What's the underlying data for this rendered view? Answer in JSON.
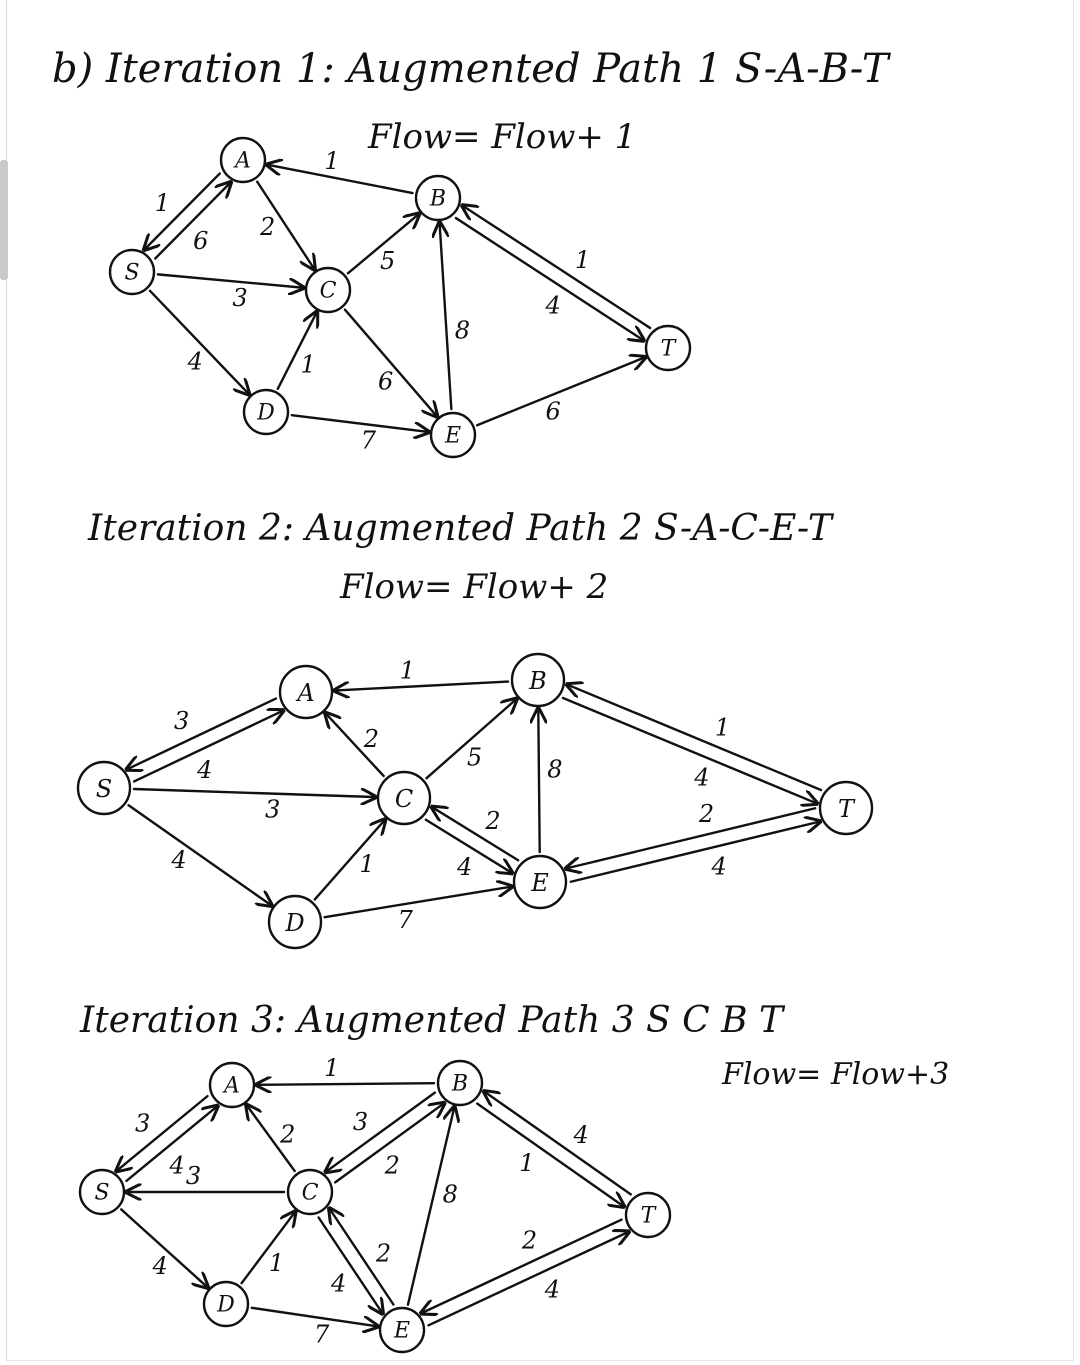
{
  "sections": [
    {
      "title": "b) Iteration 1: Augmented Path 1 S-A-B-T",
      "flow": "Flow= Flow+ 1",
      "nodes": [
        "A",
        "B",
        "S",
        "C",
        "T",
        "D",
        "E"
      ],
      "capacities": [
        {
          "from": "A",
          "to": "S",
          "label": "1"
        },
        {
          "from": "S",
          "to": "A",
          "label": "6"
        },
        {
          "from": "B",
          "to": "A",
          "label": "1"
        },
        {
          "from": "A",
          "to": "C",
          "label": "2"
        },
        {
          "from": "S",
          "to": "C",
          "label": "3"
        },
        {
          "from": "C",
          "to": "B",
          "label": "5"
        },
        {
          "from": "B",
          "to": "T",
          "label": "4"
        },
        {
          "from": "T",
          "to": "B",
          "label": "1"
        },
        {
          "from": "C",
          "to": "E",
          "label": "6"
        },
        {
          "from": "E",
          "to": "B",
          "label": "8"
        },
        {
          "from": "S",
          "to": "D",
          "label": "4"
        },
        {
          "from": "D",
          "to": "C",
          "label": "1"
        },
        {
          "from": "D",
          "to": "E",
          "label": "7"
        },
        {
          "from": "E",
          "to": "T",
          "label": "6"
        }
      ]
    },
    {
      "title": "Iteration 2: Augmented Path 2 S-A-C-E-T",
      "flow": "Flow= Flow+ 2",
      "nodes": [
        "A",
        "B",
        "S",
        "C",
        "T",
        "D",
        "E"
      ],
      "capacities": [
        {
          "from": "A",
          "to": "S",
          "label": "3"
        },
        {
          "from": "S",
          "to": "A",
          "label": "4"
        },
        {
          "from": "B",
          "to": "A",
          "label": "1"
        },
        {
          "from": "C",
          "to": "A",
          "label": "2"
        },
        {
          "from": "S",
          "to": "C",
          "label": "3"
        },
        {
          "from": "C",
          "to": "B",
          "label": "5"
        },
        {
          "from": "B",
          "to": "T",
          "label": "4"
        },
        {
          "from": "T",
          "to": "B",
          "label": "1"
        },
        {
          "from": "C",
          "to": "E",
          "label": "4"
        },
        {
          "from": "E",
          "to": "C",
          "label": "2"
        },
        {
          "from": "E",
          "to": "B",
          "label": "8"
        },
        {
          "from": "T",
          "to": "E",
          "label": "2"
        },
        {
          "from": "E",
          "to": "T",
          "label": "4"
        },
        {
          "from": "S",
          "to": "D",
          "label": "4"
        },
        {
          "from": "D",
          "to": "C",
          "label": "1"
        },
        {
          "from": "D",
          "to": "E",
          "label": "7"
        }
      ]
    },
    {
      "title": "Iteration 3: Augmented Path 3 S C B T",
      "flow": "Flow= Flow+3",
      "nodes": [
        "A",
        "B",
        "S",
        "C",
        "T",
        "D",
        "E"
      ],
      "capacities": [
        {
          "from": "A",
          "to": "S",
          "label": "3"
        },
        {
          "from": "S",
          "to": "A",
          "label": "4"
        },
        {
          "from": "B",
          "to": "A",
          "label": "1"
        },
        {
          "from": "C",
          "to": "A",
          "label": "2"
        },
        {
          "from": "C",
          "to": "S",
          "label": "3"
        },
        {
          "from": "C",
          "to": "B",
          "label": "2"
        },
        {
          "from": "B",
          "to": "C",
          "label": "3"
        },
        {
          "from": "B",
          "to": "T",
          "label": "1"
        },
        {
          "from": "E",
          "to": "B",
          "label": "8"
        },
        {
          "from": "T",
          "to": "B",
          "label": "4"
        },
        {
          "from": "S",
          "to": "D",
          "label": "4"
        },
        {
          "from": "D",
          "to": "C",
          "label": "1"
        },
        {
          "from": "C",
          "to": "E",
          "label": "4"
        },
        {
          "from": "E",
          "to": "C",
          "label": "2"
        },
        {
          "from": "D",
          "to": "E",
          "label": "7"
        },
        {
          "from": "T",
          "to": "E",
          "label": "2"
        },
        {
          "from": "E",
          "to": "T",
          "label": "4"
        }
      ]
    }
  ]
}
